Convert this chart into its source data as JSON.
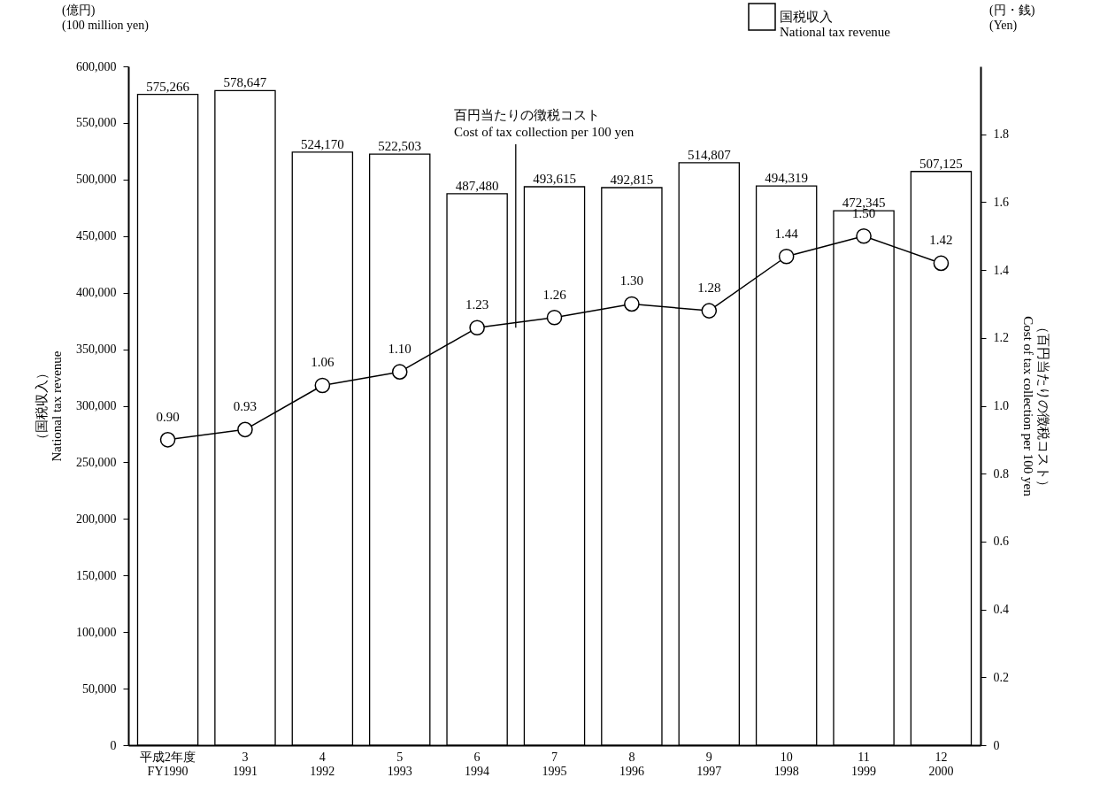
{
  "chart_data": {
    "type": "bar",
    "categories": [
      "平成2年度\nFY1990",
      "3\n1991",
      "4\n1992",
      "5\n1993",
      "6\n1994",
      "7\n1995",
      "8\n1996",
      "9\n1997",
      "10\n1998",
      "11\n1999",
      "12\n2000"
    ],
    "ylabel": "（国税収入）\nNational tax revenue",
    "y2label": "（百円当たりの徴税コスト）\nCost of tax collection per 100 yen",
    "annotations": [
      "(億円)\n(100 million yen)",
      "(円・銭)\n(Yen)"
    ],
    "series": [
      {
        "name": "国税収入\nNational tax revenue",
        "color": "#ffffff",
        "values": [
          575266,
          578647,
          524170,
          522503,
          487480,
          493615,
          492815,
          514807,
          494319,
          472345,
          507125
        ],
        "value_labels": [
          "575,266",
          "578,647",
          "524,170",
          "522,503",
          "487,480",
          "493,615",
          "492,815",
          "514,807",
          "494,319",
          "472,345",
          "507,125"
        ]
      },
      {
        "name": "百円当たりの徴税コスト\nCost of tax collection per 100 yen",
        "type": "line",
        "axis": "y2",
        "color": "#000000",
        "values": [
          0.9,
          0.93,
          1.06,
          1.1,
          1.23,
          1.26,
          1.3,
          1.28,
          1.44,
          1.5,
          1.42
        ],
        "value_labels": [
          "0.90",
          "0.93",
          "1.06",
          "1.10",
          "1.23",
          "1.26",
          "1.30",
          "1.28",
          "1.44",
          "1.50",
          "1.42"
        ]
      }
    ],
    "ylim": [
      0,
      600000
    ],
    "yticks": [
      0,
      {
        "value": 50000,
        "label": "50,000"
      },
      {
        "value": 100000,
        "label": "100,000"
      },
      {
        "value": 150000,
        "label": "150,000"
      },
      {
        "value": 200000,
        "label": "200,000"
      },
      {
        "value": 250000,
        "label": "250,000"
      },
      {
        "value": 300000,
        "label": "300,000"
      },
      {
        "value": 350000,
        "label": "350,000"
      },
      {
        "value": 400000,
        "label": "400,000"
      },
      {
        "value": 450000,
        "label": "450,000"
      },
      {
        "value": 500000,
        "label": "500,000"
      },
      {
        "value": 550000,
        "label": "550,000"
      },
      {
        "value": 600000,
        "label": "600,000"
      }
    ],
    "y2lim": [
      0,
      2.0
    ],
    "y2ticks": [
      0,
      0.2,
      0.4,
      0.6,
      0.8,
      {
        "value": 1.0,
        "label": "1.0"
      },
      1.2,
      1.4,
      1.6,
      1.8
    ],
    "marker": "circle",
    "legend": "top right",
    "grid": false
  }
}
